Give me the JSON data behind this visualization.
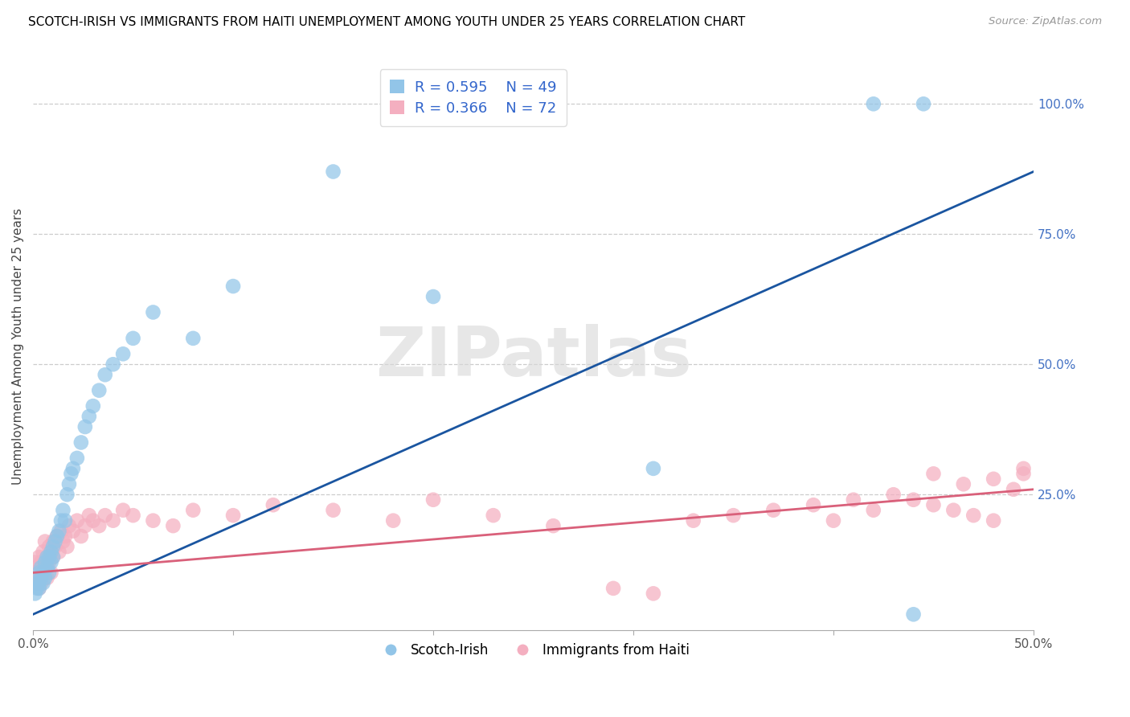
{
  "title": "SCOTCH-IRISH VS IMMIGRANTS FROM HAITI UNEMPLOYMENT AMONG YOUTH UNDER 25 YEARS CORRELATION CHART",
  "source": "Source: ZipAtlas.com",
  "ylabel": "Unemployment Among Youth under 25 years",
  "xlim": [
    0,
    0.5
  ],
  "ylim": [
    -0.01,
    1.08
  ],
  "ytick_vals": [
    0.25,
    0.5,
    0.75,
    1.0
  ],
  "ytick_labels": [
    "25.0%",
    "50.0%",
    "75.0%",
    "100.0%"
  ],
  "xtick_vals": [
    0.0,
    0.1,
    0.2,
    0.3,
    0.4,
    0.5
  ],
  "xtick_labels": [
    "0.0%",
    "",
    "",
    "",
    "",
    "50.0%"
  ],
  "watermark": "ZIPatlas",
  "legend1_R": "0.595",
  "legend1_N": "49",
  "legend2_R": "0.366",
  "legend2_N": "72",
  "blue_scatter_color": "#92c5e8",
  "pink_scatter_color": "#f4afc0",
  "blue_line_color": "#1a55a0",
  "pink_line_color": "#d9607a",
  "scotch_irish_x": [
    0.001,
    0.002,
    0.002,
    0.003,
    0.003,
    0.003,
    0.004,
    0.004,
    0.005,
    0.005,
    0.006,
    0.006,
    0.007,
    0.007,
    0.008,
    0.008,
    0.009,
    0.009,
    0.01,
    0.01,
    0.011,
    0.012,
    0.013,
    0.014,
    0.015,
    0.016,
    0.017,
    0.018,
    0.019,
    0.02,
    0.022,
    0.024,
    0.026,
    0.028,
    0.03,
    0.033,
    0.036,
    0.04,
    0.045,
    0.05,
    0.06,
    0.08,
    0.1,
    0.15,
    0.2,
    0.31,
    0.42,
    0.44,
    0.445
  ],
  "scotch_irish_y": [
    0.06,
    0.07,
    0.08,
    0.08,
    0.1,
    0.07,
    0.09,
    0.11,
    0.08,
    0.1,
    0.09,
    0.12,
    0.11,
    0.13,
    0.1,
    0.13,
    0.12,
    0.14,
    0.13,
    0.15,
    0.16,
    0.17,
    0.18,
    0.2,
    0.22,
    0.2,
    0.25,
    0.27,
    0.29,
    0.3,
    0.32,
    0.35,
    0.38,
    0.4,
    0.42,
    0.45,
    0.48,
    0.5,
    0.52,
    0.55,
    0.6,
    0.55,
    0.65,
    0.87,
    0.63,
    0.3,
    1.0,
    0.02,
    1.0
  ],
  "haiti_x": [
    0.001,
    0.001,
    0.002,
    0.002,
    0.003,
    0.003,
    0.003,
    0.004,
    0.004,
    0.004,
    0.005,
    0.005,
    0.006,
    0.006,
    0.007,
    0.007,
    0.008,
    0.008,
    0.009,
    0.009,
    0.01,
    0.01,
    0.011,
    0.012,
    0.013,
    0.014,
    0.015,
    0.016,
    0.017,
    0.018,
    0.02,
    0.022,
    0.024,
    0.026,
    0.028,
    0.03,
    0.033,
    0.036,
    0.04,
    0.045,
    0.05,
    0.06,
    0.07,
    0.08,
    0.1,
    0.12,
    0.15,
    0.18,
    0.2,
    0.23,
    0.26,
    0.29,
    0.31,
    0.33,
    0.35,
    0.37,
    0.39,
    0.4,
    0.41,
    0.42,
    0.43,
    0.44,
    0.45,
    0.46,
    0.47,
    0.48,
    0.49,
    0.495,
    0.495,
    0.48,
    0.465,
    0.45
  ],
  "haiti_y": [
    0.1,
    0.12,
    0.08,
    0.11,
    0.09,
    0.13,
    0.07,
    0.1,
    0.12,
    0.08,
    0.14,
    0.1,
    0.11,
    0.16,
    0.13,
    0.09,
    0.15,
    0.12,
    0.14,
    0.1,
    0.13,
    0.16,
    0.15,
    0.17,
    0.14,
    0.18,
    0.16,
    0.17,
    0.15,
    0.19,
    0.18,
    0.2,
    0.17,
    0.19,
    0.21,
    0.2,
    0.19,
    0.21,
    0.2,
    0.22,
    0.21,
    0.2,
    0.19,
    0.22,
    0.21,
    0.23,
    0.22,
    0.2,
    0.24,
    0.21,
    0.19,
    0.07,
    0.06,
    0.2,
    0.21,
    0.22,
    0.23,
    0.2,
    0.24,
    0.22,
    0.25,
    0.24,
    0.23,
    0.22,
    0.21,
    0.2,
    0.26,
    0.3,
    0.29,
    0.28,
    0.27,
    0.29
  ]
}
